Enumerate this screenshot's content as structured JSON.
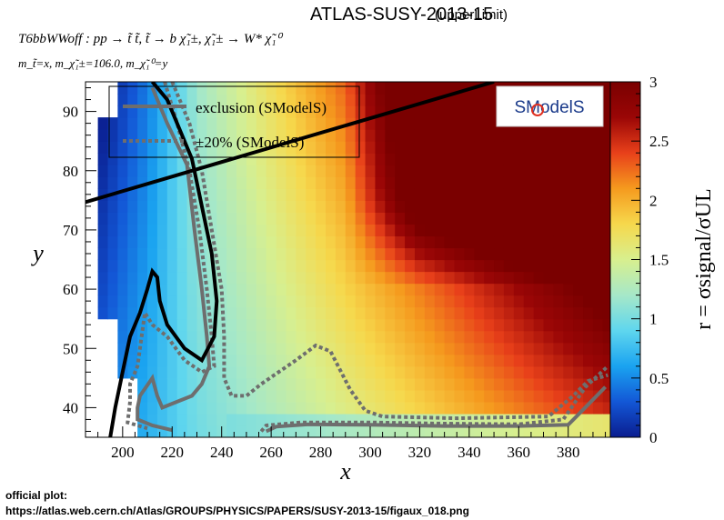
{
  "title_main": "ATLAS-SUSY-2013-15",
  "title_sub": "(upperLimit)",
  "process_line": "T6bbWWoff : pp → t̃ t̃, t̃ → b χ̃₁±, χ̃₁± → W* χ̃₁⁰",
  "mass_line": "m_t̃=x, m_χ̃₁±=106.0, m_χ̃₁⁰=y",
  "footer_label": "official plot:",
  "footer_url": "https://atlas.web.cern.ch/Atlas/GROUPS/PHYSICS/PAPERS/SUSY-2013-15/figaux_018.png",
  "logo_text": "SModelS",
  "colors": {
    "exclusion": "#6e6e6e",
    "official": "#000000",
    "palette": [
      "#0a1d8f",
      "#1357d6",
      "#1aa3f0",
      "#5fd6ee",
      "#a6e8c8",
      "#d8ef8e",
      "#f6d84c",
      "#f59a1e",
      "#e8401a",
      "#9a0606",
      "#7a0000"
    ]
  },
  "chart_data": {
    "type": "heatmap",
    "xlabel": "x",
    "ylabel": "y",
    "zlabel": "r = σsignal/σUL",
    "xlim": [
      185,
      397
    ],
    "ylim": [
      35,
      95
    ],
    "zlim": [
      0,
      3
    ],
    "x_ticks": [
      200,
      220,
      240,
      260,
      280,
      300,
      320,
      340,
      360,
      380
    ],
    "y_ticks": [
      40,
      50,
      60,
      70,
      80,
      90
    ],
    "z_ticks": [
      0,
      0.5,
      1,
      1.5,
      2,
      2.5,
      3
    ],
    "legend": [
      {
        "label": "exclusion (SModelS)",
        "style": "solid"
      },
      {
        "label": "±20% (SModelS)",
        "style": "dotted"
      }
    ],
    "official_exclusion": [
      [
        185,
        74.7
      ],
      [
        350,
        95
      ]
    ],
    "exclusion_smodels": [
      [
        [
          212,
          94
        ],
        [
          218,
          88
        ],
        [
          226,
          81
        ],
        [
          229,
          70
        ],
        [
          232,
          60
        ],
        [
          234,
          52
        ],
        [
          235,
          47
        ],
        [
          232,
          44
        ],
        [
          228,
          42
        ],
        [
          222,
          41
        ],
        [
          216,
          40
        ],
        [
          214,
          42
        ],
        [
          212,
          45
        ],
        [
          207,
          42
        ],
        [
          206,
          40
        ],
        [
          206,
          38
        ],
        [
          212,
          37
        ],
        [
          220,
          36.2
        ]
      ],
      [
        [
          258,
          36
        ],
        [
          262,
          36.8
        ],
        [
          275,
          37.2
        ],
        [
          300,
          37.1
        ],
        [
          330,
          36.9
        ],
        [
          360,
          36.9
        ],
        [
          380,
          37.1
        ],
        [
          388,
          40.5
        ],
        [
          395,
          43.5
        ]
      ]
    ],
    "exclusion_plus20": [
      [
        [
          217,
          95
        ],
        [
          222,
          88
        ],
        [
          227,
          80
        ],
        [
          231,
          70
        ],
        [
          234,
          60
        ],
        [
          236,
          52
        ],
        [
          237,
          47
        ],
        [
          232,
          46
        ],
        [
          225,
          48
        ],
        [
          218,
          52
        ],
        [
          212,
          54
        ],
        [
          209,
          56
        ],
        [
          206,
          47
        ],
        [
          203,
          44
        ],
        [
          203,
          41
        ],
        [
          202,
          37.5
        ],
        [
          210,
          36.5
        ]
      ],
      [
        [
          256,
          36
        ],
        [
          258,
          37
        ],
        [
          272,
          37.5
        ],
        [
          300,
          37.5
        ],
        [
          330,
          37.3
        ],
        [
          360,
          37.2
        ],
        [
          378,
          38
        ],
        [
          387,
          43.5
        ],
        [
          396,
          47
        ]
      ]
    ],
    "exclusion_minus20": [
      [
        [
          220,
          95
        ],
        [
          227,
          88
        ],
        [
          232,
          80
        ],
        [
          236,
          70
        ],
        [
          240,
          60
        ],
        [
          241,
          52
        ],
        [
          241,
          45
        ],
        [
          244,
          42
        ],
        [
          250,
          42
        ],
        [
          256,
          44
        ],
        [
          263,
          46
        ],
        [
          270,
          48
        ],
        [
          278,
          50.5
        ],
        [
          284,
          49.5
        ],
        [
          292,
          43
        ],
        [
          298,
          39.5
        ],
        [
          305,
          38.5
        ],
        [
          335,
          38.2
        ],
        [
          372,
          38.5
        ],
        [
          382,
          42
        ],
        [
          388,
          44.5
        ],
        [
          396,
          45.5
        ]
      ]
    ],
    "official_exclusion_lower": [
      [
        195,
        35
      ],
      [
        197,
        40
      ],
      [
        200,
        46
      ],
      [
        203,
        52
      ],
      [
        207,
        56
      ],
      [
        210,
        60
      ],
      [
        212,
        63
      ],
      [
        214,
        62
      ],
      [
        215,
        58
      ],
      [
        218,
        54
      ],
      [
        225,
        50
      ],
      [
        232,
        48
      ],
      [
        237,
        52
      ],
      [
        238,
        58
      ],
      [
        236,
        66
      ],
      [
        232,
        74
      ],
      [
        228,
        82
      ],
      [
        222,
        88
      ],
      [
        218,
        92
      ],
      [
        212,
        95
      ]
    ]
  }
}
